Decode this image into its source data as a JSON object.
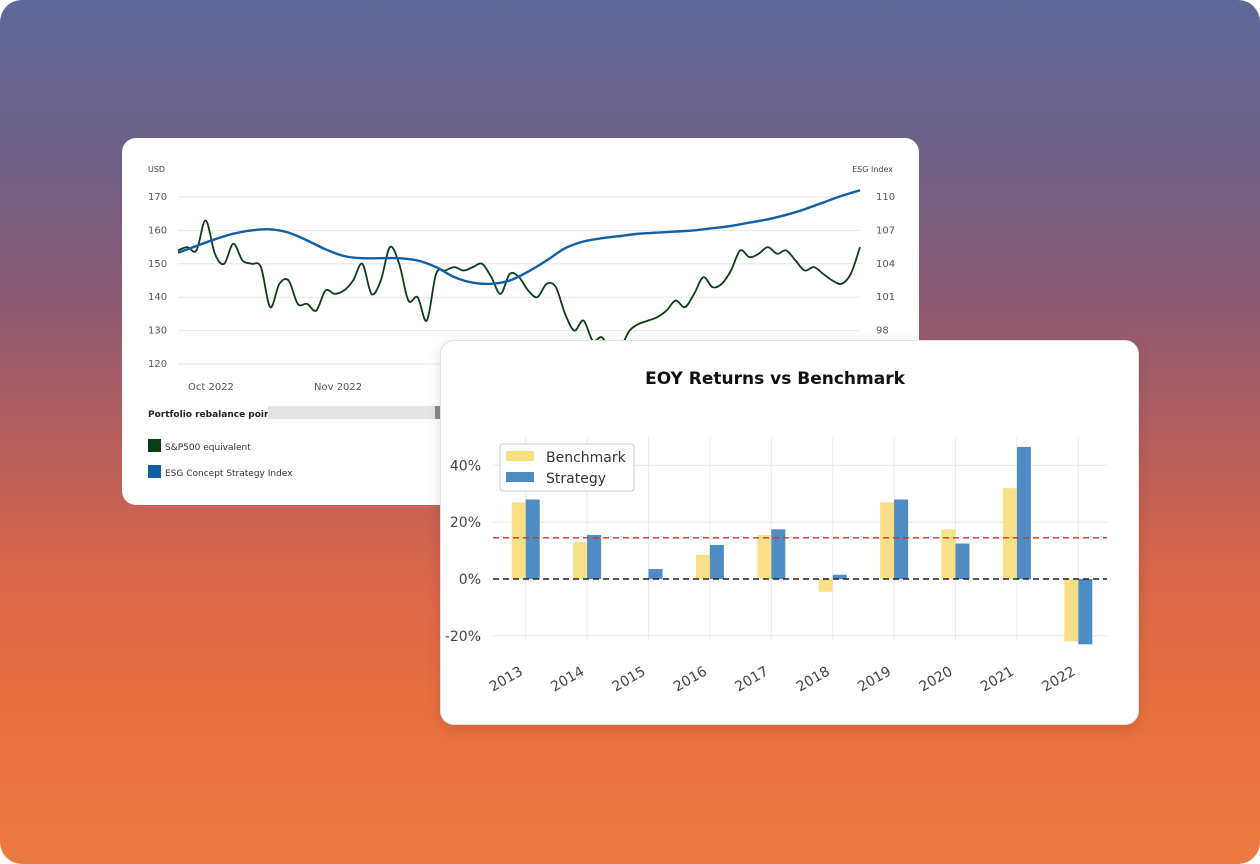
{
  "line_card": {
    "left_axis_title": "USD",
    "right_axis_title": "ESG Index",
    "rebalance_label": "Portfolio rebalance points",
    "legend": [
      {
        "label": "S&P500 equivalent",
        "color": "#0b3d17"
      },
      {
        "label": "ESG Concept Strategy Index",
        "color": "#0f5fa6"
      }
    ]
  },
  "bar_card": {
    "title": "EOY Returns  vs Benchmark"
  },
  "chart_data": [
    {
      "type": "line",
      "x_tick_labels": [
        "Oct 2022",
        "Nov 2022"
      ],
      "y_left_ticks": [
        120,
        130,
        140,
        150,
        160,
        170
      ],
      "y_right_ticks": [
        98,
        101,
        104,
        107,
        110
      ],
      "ylim_left": [
        120,
        170
      ],
      "ylim_right": [
        95,
        110
      ],
      "grid": "horizontal",
      "series": [
        {
          "name": "S&P500 equivalent",
          "axis": "left",
          "color": "#0b3d17",
          "values": [
            154,
            155,
            154,
            163,
            153,
            150,
            156,
            151,
            150,
            149,
            137,
            144,
            145,
            138,
            138,
            136,
            142,
            141,
            142,
            145,
            150,
            141,
            145,
            155,
            150,
            139,
            140,
            133,
            147,
            148,
            149,
            148,
            149,
            150,
            146,
            141,
            147,
            146,
            142,
            140,
            144,
            143,
            135,
            130,
            133,
            127,
            128,
            124,
            125,
            130,
            132,
            133,
            134,
            136,
            139,
            137,
            141,
            146,
            143,
            144,
            148,
            154,
            152,
            153,
            155,
            153,
            154,
            151,
            148,
            149,
            147,
            145,
            144,
            147,
            155
          ]
        },
        {
          "name": "ESG Concept Strategy Index",
          "axis": "right",
          "color": "#0f5fa6",
          "values": [
            105,
            105.6,
            106.2,
            106.7,
            107,
            107.1,
            106.8,
            106.1,
            105.3,
            104.7,
            104.5,
            104.5,
            104.5,
            104.3,
            103.7,
            102.8,
            102.3,
            102.2,
            102.5,
            103.3,
            104.3,
            105.4,
            106.0,
            106.3,
            106.5,
            106.7,
            106.8,
            106.9,
            107.0,
            107.2,
            107.4,
            107.7,
            108.0,
            108.4,
            108.9,
            109.5,
            110.1,
            110.6
          ]
        }
      ]
    },
    {
      "type": "bar",
      "title": "EOY Returns  vs Benchmark",
      "categories": [
        "2013",
        "2014",
        "2015",
        "2016",
        "2017",
        "2018",
        "2019",
        "2020",
        "2021",
        "2022"
      ],
      "series": [
        {
          "name": "Benchmark",
          "color": "#f9e087",
          "values": [
            27,
            13,
            0,
            8.5,
            15.5,
            -4.5,
            27,
            17.5,
            32,
            -22
          ]
        },
        {
          "name": "Strategy",
          "color": "#4f8cc3",
          "values": [
            28,
            15.5,
            3.5,
            12,
            17.5,
            1.5,
            28,
            12.5,
            46.5,
            -23
          ]
        }
      ],
      "y_ticks": [
        "40%",
        "20%",
        "0%",
        "-20%"
      ],
      "y_tick_values": [
        40,
        20,
        0,
        -20
      ],
      "ylim": [
        -25,
        50
      ],
      "reference_lines": [
        {
          "value": 14.5,
          "color": "#e02b2b",
          "style": "dashed"
        },
        {
          "value": 0,
          "color": "#222222",
          "style": "dashed"
        }
      ],
      "legend_position": "top-left",
      "grid": true
    }
  ]
}
